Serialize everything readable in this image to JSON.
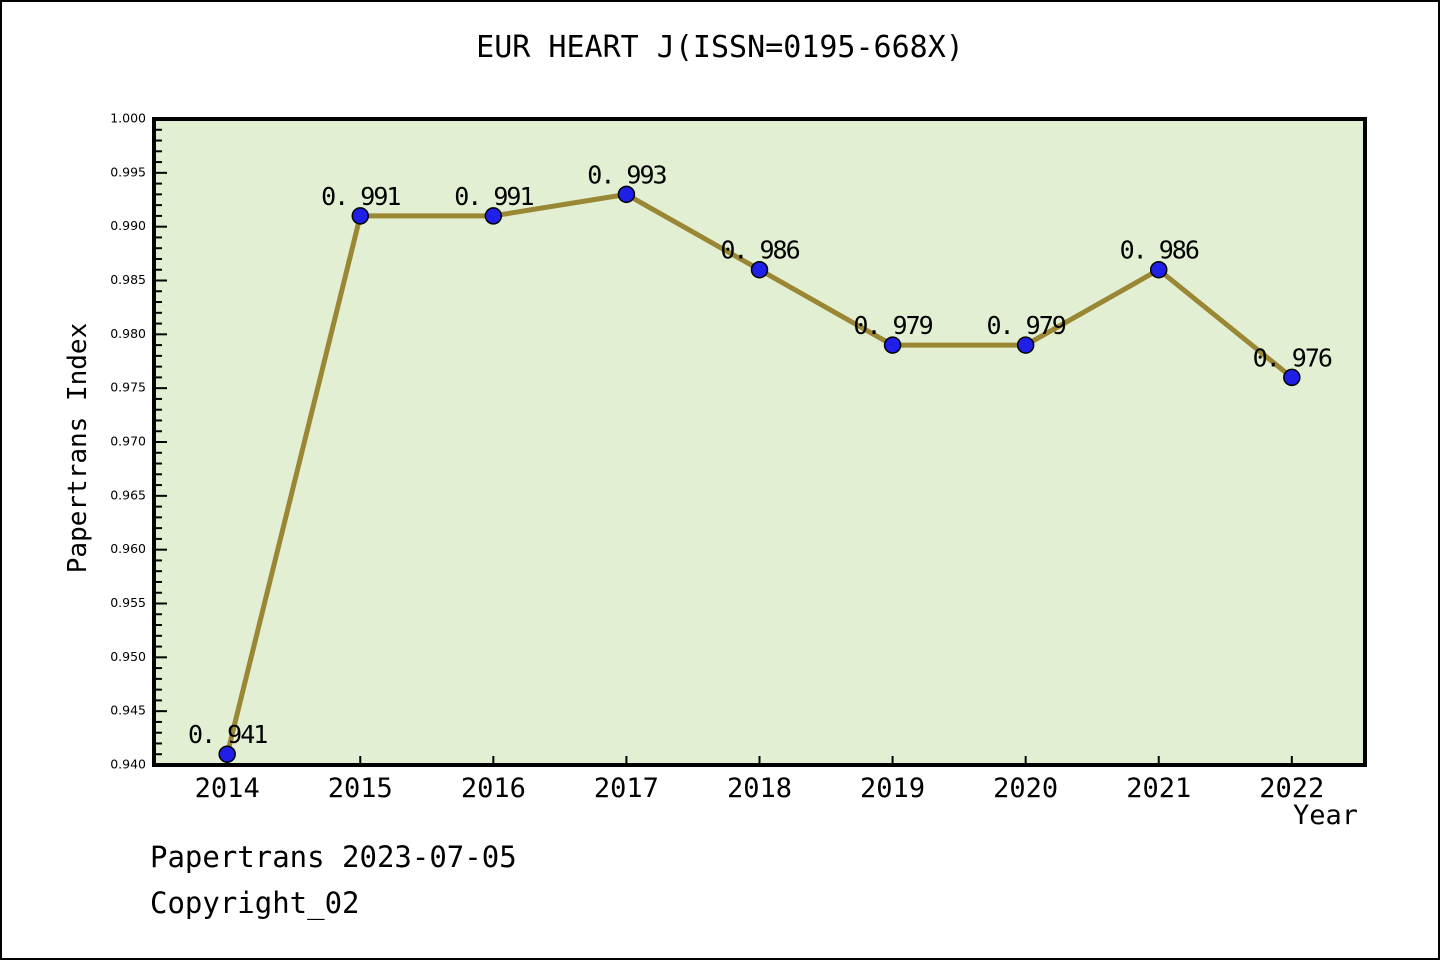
{
  "page": {
    "footer_line1": "Papertrans 2023-07-05",
    "footer_line2": "Copyright_02"
  },
  "chart_data": {
    "type": "line",
    "title": "EUR HEART J(ISSN=0195-668X)",
    "xlabel": "Year",
    "ylabel": "Papertrans Index",
    "x": [
      2014,
      2015,
      2016,
      2017,
      2018,
      2019,
      2020,
      2021,
      2022
    ],
    "values": [
      0.941,
      0.991,
      0.991,
      0.993,
      0.986,
      0.979,
      0.979,
      0.986,
      0.976
    ],
    "point_labels": [
      "0. 941",
      "0. 991",
      "0. 991",
      "0. 993",
      "0. 986",
      "0. 979",
      "0. 979",
      "0. 986",
      "0. 976"
    ],
    "xlim": [
      2013.45,
      2022.55
    ],
    "ylim": [
      0.94,
      1.0
    ],
    "y_major_step": 0.005,
    "y_minor_step": 0.001,
    "y_tick_decimals": 3,
    "grid": false,
    "legend": null,
    "series_name": "Papertrans Index",
    "colors": {
      "line": "#9a8734",
      "marker_fill": "#1f1fe8",
      "marker_edge": "#000000",
      "plot_bg": "#e3efd3",
      "frame": "#000000",
      "text": "#000000",
      "page_bg": "#ffffff"
    }
  }
}
